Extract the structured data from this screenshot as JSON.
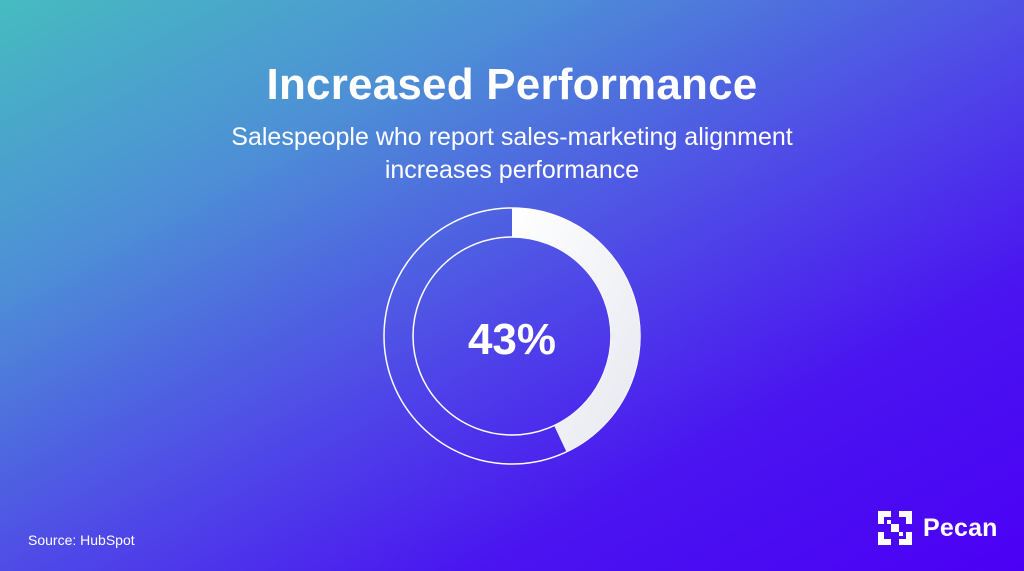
{
  "chart_data": {
    "type": "pie",
    "title": "Increased Performance",
    "subtitle": "Salespeople who report sales-marketing alignment increases performance",
    "values": [
      43,
      57
    ],
    "value_label": "43%"
  },
  "footer": {
    "source": "Source: HubSpot",
    "brand": "Pecan"
  },
  "colors": {
    "arc": "#f0f1f6",
    "ring_stroke": "#ffffff"
  }
}
